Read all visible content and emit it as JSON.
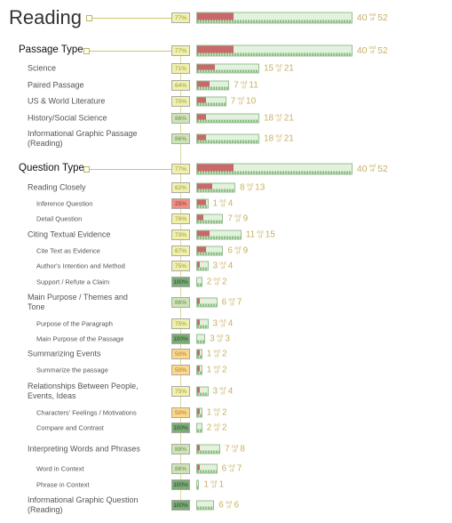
{
  "out_of_label_top": "out",
  "out_of_label_bottom": "of",
  "rows": [
    {
      "label": "Reading",
      "percent": "77%",
      "correct": 40,
      "total": 52,
      "level": 0
    },
    {
      "label": "Passage Type",
      "percent": "77%",
      "correct": 40,
      "total": 52,
      "level": 1
    },
    {
      "label": "Science",
      "percent": "71%",
      "correct": 15,
      "total": 21,
      "level": 2
    },
    {
      "label": "Paired Passage",
      "percent": "64%",
      "correct": 7,
      "total": 11,
      "level": 2
    },
    {
      "label": "US & World Literature",
      "percent": "70%",
      "correct": 7,
      "total": 10,
      "level": 2
    },
    {
      "label": "History/Social Science",
      "percent": "86%",
      "correct": 18,
      "total": 21,
      "level": 2
    },
    {
      "label": "Informational Graphic Passage (Reading)",
      "percent": "86%",
      "correct": 18,
      "total": 21,
      "level": 2
    },
    {
      "label": "Question Type",
      "percent": "77%",
      "correct": 40,
      "total": 52,
      "level": 1
    },
    {
      "label": "Reading Closely",
      "percent": "62%",
      "correct": 8,
      "total": 13,
      "level": 2
    },
    {
      "label": "Inference Question",
      "percent": "25%",
      "correct": 1,
      "total": 4,
      "level": 3
    },
    {
      "label": "Detail Question",
      "percent": "78%",
      "correct": 7,
      "total": 9,
      "level": 3
    },
    {
      "label": "Citing Textual Evidence",
      "percent": "73%",
      "correct": 11,
      "total": 15,
      "level": 2
    },
    {
      "label": "Cite Text as Evidence",
      "percent": "67%",
      "correct": 6,
      "total": 9,
      "level": 3
    },
    {
      "label": "Author's Intention and Method",
      "percent": "75%",
      "correct": 3,
      "total": 4,
      "level": 3
    },
    {
      "label": "Support / Refute a Claim",
      "percent": "100%",
      "correct": 2,
      "total": 2,
      "level": 3
    },
    {
      "label": "Main Purpose / Themes and Tone",
      "percent": "86%",
      "correct": 6,
      "total": 7,
      "level": 2
    },
    {
      "label": "Purpose of the Paragraph",
      "percent": "75%",
      "correct": 3,
      "total": 4,
      "level": 3
    },
    {
      "label": "Main Purpose of the Passage",
      "percent": "100%",
      "correct": 3,
      "total": 3,
      "level": 3
    },
    {
      "label": "Summarizing Events",
      "percent": "50%",
      "correct": 1,
      "total": 2,
      "level": 2
    },
    {
      "label": "Summarize the passage",
      "percent": "50%",
      "correct": 1,
      "total": 2,
      "level": 3
    },
    {
      "label": "Relationships Between People, Events, Ideas",
      "percent": "75%",
      "correct": 3,
      "total": 4,
      "level": 2
    },
    {
      "label": "Characters' Feelings / Motivations",
      "percent": "50%",
      "correct": 1,
      "total": 2,
      "level": 3
    },
    {
      "label": "Compare and Contrast",
      "percent": "100%",
      "correct": 2,
      "total": 2,
      "level": 3
    },
    {
      "label": "Interpreting Words and Phrases",
      "percent": "88%",
      "correct": 7,
      "total": 8,
      "level": 2
    },
    {
      "label": "Word in Context",
      "percent": "86%",
      "correct": 6,
      "total": 7,
      "level": 3
    },
    {
      "label": "Phrase in Context",
      "percent": "100%",
      "correct": 1,
      "total": 1,
      "level": 3
    },
    {
      "label": "Informational Graphic Question (Reading)",
      "percent": "100%",
      "correct": 6,
      "total": 6,
      "level": 2
    }
  ]
}
